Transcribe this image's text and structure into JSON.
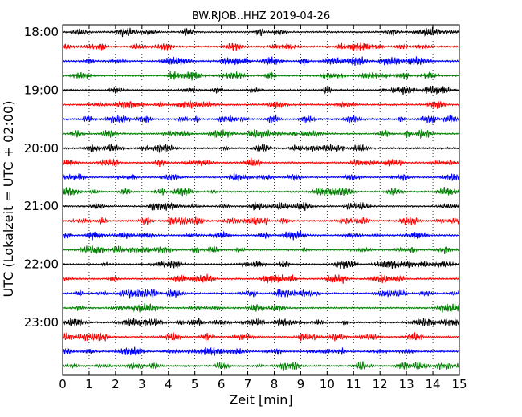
{
  "chart_data": {
    "type": "line",
    "title": "BW.RJOB..HHZ 2019-04-26",
    "xlabel": "Zeit  [min]",
    "ylabel": "UTC (Lokalzeit = UTC + 02:00)",
    "xlim": [
      0,
      15
    ],
    "x_ticks": [
      0,
      1,
      2,
      3,
      4,
      5,
      6,
      7,
      8,
      9,
      10,
      11,
      12,
      13,
      14,
      15
    ],
    "x_tick_labels": [
      "0",
      "1",
      "2",
      "3",
      "4",
      "5",
      "6",
      "7",
      "8",
      "9",
      "10",
      "11",
      "12",
      "13",
      "14",
      "15"
    ],
    "y_tick_labels": [
      "18:00",
      "19:00",
      "20:00",
      "21:00",
      "22:00",
      "23:00"
    ],
    "y_tick_trace_index": [
      0,
      4,
      8,
      12,
      16,
      20
    ],
    "trace_interval_minutes": 15,
    "trace_start_times": [
      "18:00",
      "18:15",
      "18:30",
      "18:45",
      "19:00",
      "19:15",
      "19:30",
      "19:45",
      "20:00",
      "20:15",
      "20:30",
      "20:45",
      "21:00",
      "21:15",
      "21:30",
      "21:45",
      "22:00",
      "22:15",
      "22:30",
      "22:45",
      "23:00",
      "23:15",
      "23:30",
      "23:45"
    ],
    "trace_colors": [
      "#000000",
      "#ff0000",
      "#0000ff",
      "#008000"
    ],
    "grid_x": true,
    "grid_style": "dotted"
  }
}
